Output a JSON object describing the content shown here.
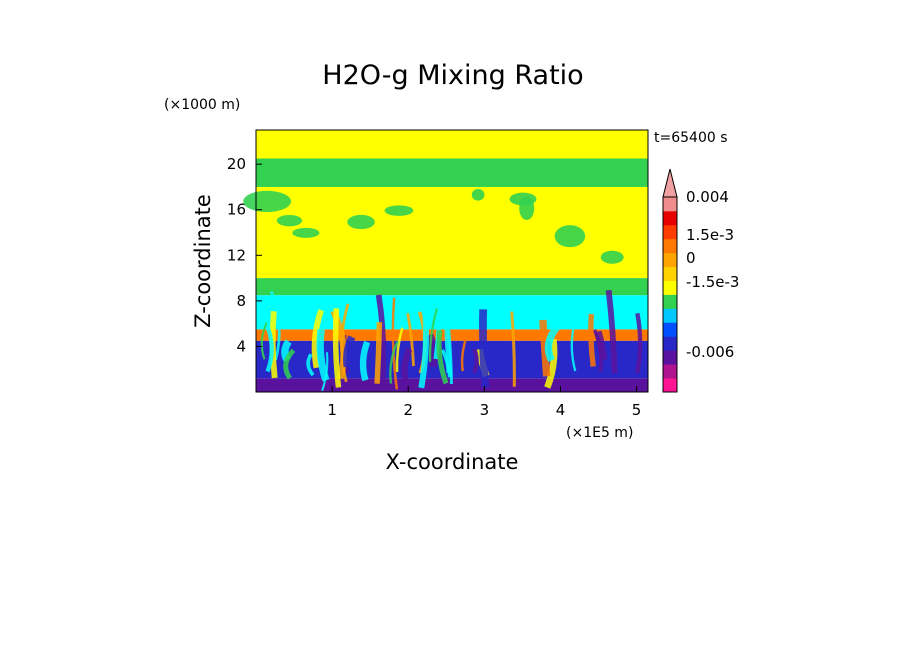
{
  "chart_data": {
    "type": "heatmap",
    "title": "H2O-g Mixing Ratio",
    "xlabel": "X-coordinate",
    "ylabel": "Z-coordinate",
    "x_unit": "(×1E5 m)",
    "y_unit": "(×1000 m)",
    "time_label": "t=65400 s",
    "xlim": [
      0,
      5.15
    ],
    "ylim": [
      0,
      23
    ],
    "x_ticks": [
      "1",
      "2",
      "3",
      "4",
      "5"
    ],
    "y_ticks": [
      "20",
      "16",
      "12",
      "8",
      "4"
    ],
    "colorbar_labels": [
      "0.004",
      "1.5e-3",
      "0",
      "-1.5e-3",
      "-0.006"
    ],
    "colorbar_colors": [
      "#ff1493",
      "#b0138e",
      "#5a129e",
      "#2828c8",
      "#0050ff",
      "#00c8ff",
      "#32d250",
      "#ffff00",
      "#ffd200",
      "#ffa500",
      "#ff7800",
      "#ff3c00",
      "#e60000",
      "#f08c8c"
    ],
    "color_bands": [
      {
        "z_from": 0,
        "z_to": 1.2,
        "color": "#5a129e"
      },
      {
        "z_from": 1.2,
        "z_to": 4.5,
        "color": "#2828c8"
      },
      {
        "z_from": 4.5,
        "z_to": 5.5,
        "color": "#ff7800"
      },
      {
        "z_from": 5.5,
        "z_to": 8.5,
        "color": "#00ffff"
      },
      {
        "z_from": 8.5,
        "z_to": 10,
        "color": "#32d250"
      },
      {
        "z_from": 10,
        "z_to": 18,
        "color": "#ffff00"
      },
      {
        "z_from": 18,
        "z_to": 20.5,
        "color": "#32d250"
      },
      {
        "z_from": 20.5,
        "z_to": 23,
        "color": "#ffff00"
      }
    ]
  }
}
